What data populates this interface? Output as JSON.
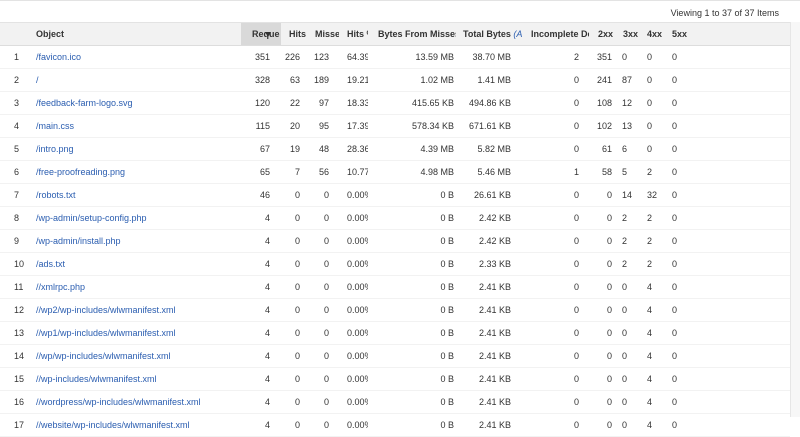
{
  "pager": {
    "viewing": "Viewing 1 to 37 of 37 Items"
  },
  "columns": {
    "object": "Object",
    "requests": "Reques",
    "hits": "Hits",
    "misses": "Misse",
    "hit_pct": "Hits %",
    "bytes_from_misses": "Bytes From Misses",
    "total_bytes": "Total Bytes",
    "total_bytes_unit": "(A",
    "incomplete": "Incomplete Do",
    "s2xx": "2xx",
    "s3xx": "3xx",
    "s4xx": "4xx",
    "s5xx": "5xx"
  },
  "rows": [
    {
      "idx": "1",
      "object": "/favicon.ico",
      "req": "351",
      "hits": "226",
      "miss": "123",
      "hitp": "64.39",
      "bfm": "13.59 MB",
      "tb": "38.70 MB",
      "inc": "2",
      "s2": "351",
      "s3": "0",
      "s4": "0",
      "s5": "0"
    },
    {
      "idx": "2",
      "object": "/",
      "req": "328",
      "hits": "63",
      "miss": "189",
      "hitp": "19.21",
      "bfm": "1.02 MB",
      "tb": "1.41 MB",
      "inc": "0",
      "s2": "241",
      "s3": "87",
      "s4": "0",
      "s5": "0"
    },
    {
      "idx": "3",
      "object": "/feedback-farm-logo.svg",
      "req": "120",
      "hits": "22",
      "miss": "97",
      "hitp": "18.33",
      "bfm": "415.65 KB",
      "tb": "494.86 KB",
      "inc": "0",
      "s2": "108",
      "s3": "12",
      "s4": "0",
      "s5": "0"
    },
    {
      "idx": "4",
      "object": "/main.css",
      "req": "115",
      "hits": "20",
      "miss": "95",
      "hitp": "17.39",
      "bfm": "578.34 KB",
      "tb": "671.61 KB",
      "inc": "0",
      "s2": "102",
      "s3": "13",
      "s4": "0",
      "s5": "0"
    },
    {
      "idx": "5",
      "object": "/intro.png",
      "req": "67",
      "hits": "19",
      "miss": "48",
      "hitp": "28.36",
      "bfm": "4.39 MB",
      "tb": "5.82 MB",
      "inc": "0",
      "s2": "61",
      "s3": "6",
      "s4": "0",
      "s5": "0"
    },
    {
      "idx": "6",
      "object": "/free-proofreading.png",
      "req": "65",
      "hits": "7",
      "miss": "56",
      "hitp": "10.77",
      "bfm": "4.98 MB",
      "tb": "5.46 MB",
      "inc": "1",
      "s2": "58",
      "s3": "5",
      "s4": "2",
      "s5": "0"
    },
    {
      "idx": "7",
      "object": "/robots.txt",
      "req": "46",
      "hits": "0",
      "miss": "0",
      "hitp": "0.00%",
      "bfm": "0 B",
      "tb": "26.61 KB",
      "inc": "0",
      "s2": "0",
      "s3": "14",
      "s4": "32",
      "s5": "0"
    },
    {
      "idx": "8",
      "object": "/wp-admin/setup-config.php",
      "req": "4",
      "hits": "0",
      "miss": "0",
      "hitp": "0.00%",
      "bfm": "0 B",
      "tb": "2.42 KB",
      "inc": "0",
      "s2": "0",
      "s3": "2",
      "s4": "2",
      "s5": "0"
    },
    {
      "idx": "9",
      "object": "/wp-admin/install.php",
      "req": "4",
      "hits": "0",
      "miss": "0",
      "hitp": "0.00%",
      "bfm": "0 B",
      "tb": "2.42 KB",
      "inc": "0",
      "s2": "0",
      "s3": "2",
      "s4": "2",
      "s5": "0"
    },
    {
      "idx": "10",
      "object": "/ads.txt",
      "req": "4",
      "hits": "0",
      "miss": "0",
      "hitp": "0.00%",
      "bfm": "0 B",
      "tb": "2.33 KB",
      "inc": "0",
      "s2": "0",
      "s3": "2",
      "s4": "2",
      "s5": "0"
    },
    {
      "idx": "11",
      "object": "//xmlrpc.php",
      "req": "4",
      "hits": "0",
      "miss": "0",
      "hitp": "0.00%",
      "bfm": "0 B",
      "tb": "2.41 KB",
      "inc": "0",
      "s2": "0",
      "s3": "0",
      "s4": "4",
      "s5": "0"
    },
    {
      "idx": "12",
      "object": "//wp2/wp-includes/wlwmanifest.xml",
      "req": "4",
      "hits": "0",
      "miss": "0",
      "hitp": "0.00%",
      "bfm": "0 B",
      "tb": "2.41 KB",
      "inc": "0",
      "s2": "0",
      "s3": "0",
      "s4": "4",
      "s5": "0"
    },
    {
      "idx": "13",
      "object": "//wp1/wp-includes/wlwmanifest.xml",
      "req": "4",
      "hits": "0",
      "miss": "0",
      "hitp": "0.00%",
      "bfm": "0 B",
      "tb": "2.41 KB",
      "inc": "0",
      "s2": "0",
      "s3": "0",
      "s4": "4",
      "s5": "0"
    },
    {
      "idx": "14",
      "object": "//wp/wp-includes/wlwmanifest.xml",
      "req": "4",
      "hits": "0",
      "miss": "0",
      "hitp": "0.00%",
      "bfm": "0 B",
      "tb": "2.41 KB",
      "inc": "0",
      "s2": "0",
      "s3": "0",
      "s4": "4",
      "s5": "0"
    },
    {
      "idx": "15",
      "object": "//wp-includes/wlwmanifest.xml",
      "req": "4",
      "hits": "0",
      "miss": "0",
      "hitp": "0.00%",
      "bfm": "0 B",
      "tb": "2.41 KB",
      "inc": "0",
      "s2": "0",
      "s3": "0",
      "s4": "4",
      "s5": "0"
    },
    {
      "idx": "16",
      "object": "//wordpress/wp-includes/wlwmanifest.xml",
      "req": "4",
      "hits": "0",
      "miss": "0",
      "hitp": "0.00%",
      "bfm": "0 B",
      "tb": "2.41 KB",
      "inc": "0",
      "s2": "0",
      "s3": "0",
      "s4": "4",
      "s5": "0"
    },
    {
      "idx": "17",
      "object": "//website/wp-includes/wlwmanifest.xml",
      "req": "4",
      "hits": "0",
      "miss": "0",
      "hitp": "0.00%",
      "bfm": "0 B",
      "tb": "2.41 KB",
      "inc": "0",
      "s2": "0",
      "s3": "0",
      "s4": "4",
      "s5": "0"
    }
  ]
}
